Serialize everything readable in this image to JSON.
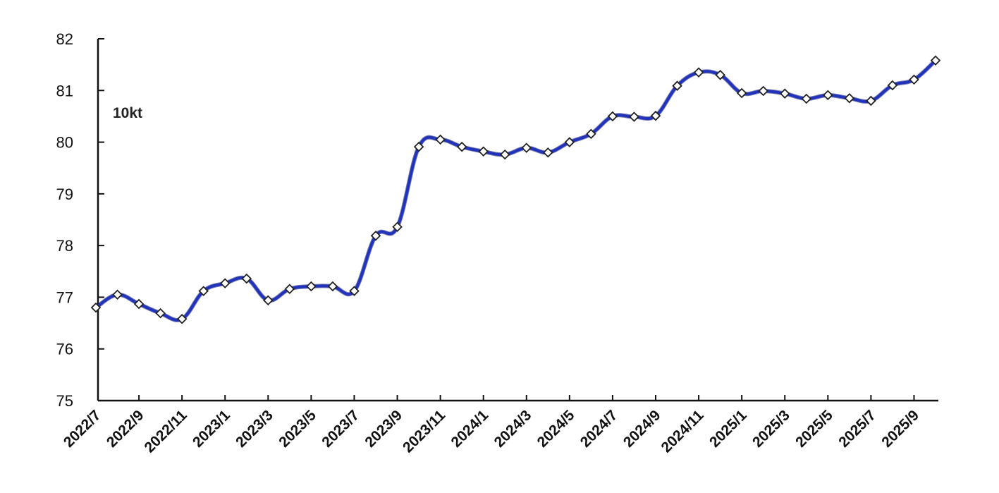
{
  "chart_data": {
    "type": "line",
    "title": "",
    "xlabel": "",
    "ylabel": "",
    "unit_label": "10kt",
    "ylim": [
      75,
      82
    ],
    "yticks": [
      75,
      76,
      77,
      78,
      79,
      80,
      81,
      82
    ],
    "grid": false,
    "line_color": "#2233bb",
    "marker": "diamond",
    "marker_fill": "#ffffff",
    "x": [
      "2022/7",
      "2022/8",
      "2022/9",
      "2022/10",
      "2022/11",
      "2022/12",
      "2023/1",
      "2023/2",
      "2023/3",
      "2023/4",
      "2023/5",
      "2023/6",
      "2023/7",
      "2023/8",
      "2023/9",
      "2023/10",
      "2023/11",
      "2023/12",
      "2024/1",
      "2024/2",
      "2024/3",
      "2024/4",
      "2024/5",
      "2024/6",
      "2024/7",
      "2024/8",
      "2024/9",
      "2024/10",
      "2024/11",
      "2024/12",
      "2025/1",
      "2025/2",
      "2025/3",
      "2025/4",
      "2025/5",
      "2025/6",
      "2025/7",
      "2025/8",
      "2025/9",
      "2025/10"
    ],
    "xtick_labels": [
      "2022/7",
      "2022/9",
      "2022/11",
      "2023/1",
      "2023/3",
      "2023/5",
      "2023/7",
      "2023/9",
      "2023/11",
      "2024/1",
      "2024/3",
      "2024/5",
      "2024/7",
      "2024/9",
      "2024/11",
      "2025/1",
      "2025/3",
      "2025/5",
      "2025/7",
      "2025/9"
    ],
    "series": [
      {
        "values": [
          76.8,
          77.05,
          76.87,
          76.69,
          76.58,
          77.12,
          77.27,
          77.36,
          76.94,
          77.16,
          77.21,
          77.21,
          77.12,
          78.19,
          78.36,
          79.91,
          80.05,
          79.91,
          79.82,
          79.76,
          79.89,
          79.8,
          80.0,
          80.16,
          80.5,
          80.49,
          80.51,
          81.09,
          81.35,
          81.3,
          80.95,
          80.99,
          80.94,
          80.84,
          80.91,
          80.85,
          80.8,
          81.1,
          81.21,
          81.58
        ]
      }
    ]
  }
}
